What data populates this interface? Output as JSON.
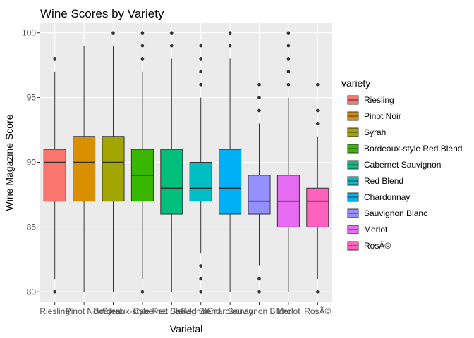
{
  "chart_data": {
    "type": "boxplot",
    "title": "Wine Scores by Variety",
    "xlabel": "Varietal",
    "ylabel": "Wine Magazine Score",
    "ylim": [
      79.2,
      100.8
    ],
    "yticks": [
      80,
      85,
      90,
      95,
      100
    ],
    "grid": true,
    "legend": {
      "title": "variety",
      "position": "right"
    },
    "categories": [
      "Riesling",
      "Pinot Noir",
      "Syrah",
      "Bordeaux-style Red Blend",
      "Cabernet Sauvignon",
      "Red Blend",
      "Chardonnay",
      "Sauvignon Blanc",
      "Merlot",
      "RosÃ©"
    ],
    "colors": [
      "#F8766D",
      "#D89000",
      "#A3A500",
      "#39B600",
      "#00BF7D",
      "#00BFC4",
      "#00B0F6",
      "#9590FF",
      "#E76BF3",
      "#FF62BC"
    ],
    "boxes": [
      {
        "min": 81,
        "q1": 87,
        "median": 90,
        "q3": 91,
        "max": 97,
        "outliers": [
          98,
          80
        ]
      },
      {
        "min": 80,
        "q1": 87,
        "median": 90,
        "q3": 92,
        "max": 99,
        "outliers": []
      },
      {
        "min": 80,
        "q1": 87,
        "median": 90,
        "q3": 92,
        "max": 99,
        "outliers": [
          100
        ]
      },
      {
        "min": 81,
        "q1": 87,
        "median": 89,
        "q3": 91,
        "max": 97,
        "outliers": [
          100,
          99,
          98,
          80
        ]
      },
      {
        "min": 80,
        "q1": 86,
        "median": 88,
        "q3": 91,
        "max": 98,
        "outliers": [
          100,
          99
        ]
      },
      {
        "min": 83,
        "q1": 87,
        "median": 88,
        "q3": 90,
        "max": 95,
        "outliers": [
          99,
          98,
          97,
          96,
          82,
          81,
          80
        ]
      },
      {
        "min": 80,
        "q1": 86,
        "median": 88,
        "q3": 91,
        "max": 98,
        "outliers": [
          100,
          99
        ]
      },
      {
        "min": 82,
        "q1": 86,
        "median": 87,
        "q3": 89,
        "max": 93,
        "outliers": [
          96,
          95,
          94,
          81,
          80
        ]
      },
      {
        "min": 80,
        "q1": 85,
        "median": 87,
        "q3": 89,
        "max": 95,
        "outliers": [
          100,
          99,
          98,
          97,
          96
        ]
      },
      {
        "min": 81,
        "q1": 85,
        "median": 87,
        "q3": 88,
        "max": 92,
        "outliers": [
          96,
          94,
          93,
          80
        ]
      }
    ]
  }
}
